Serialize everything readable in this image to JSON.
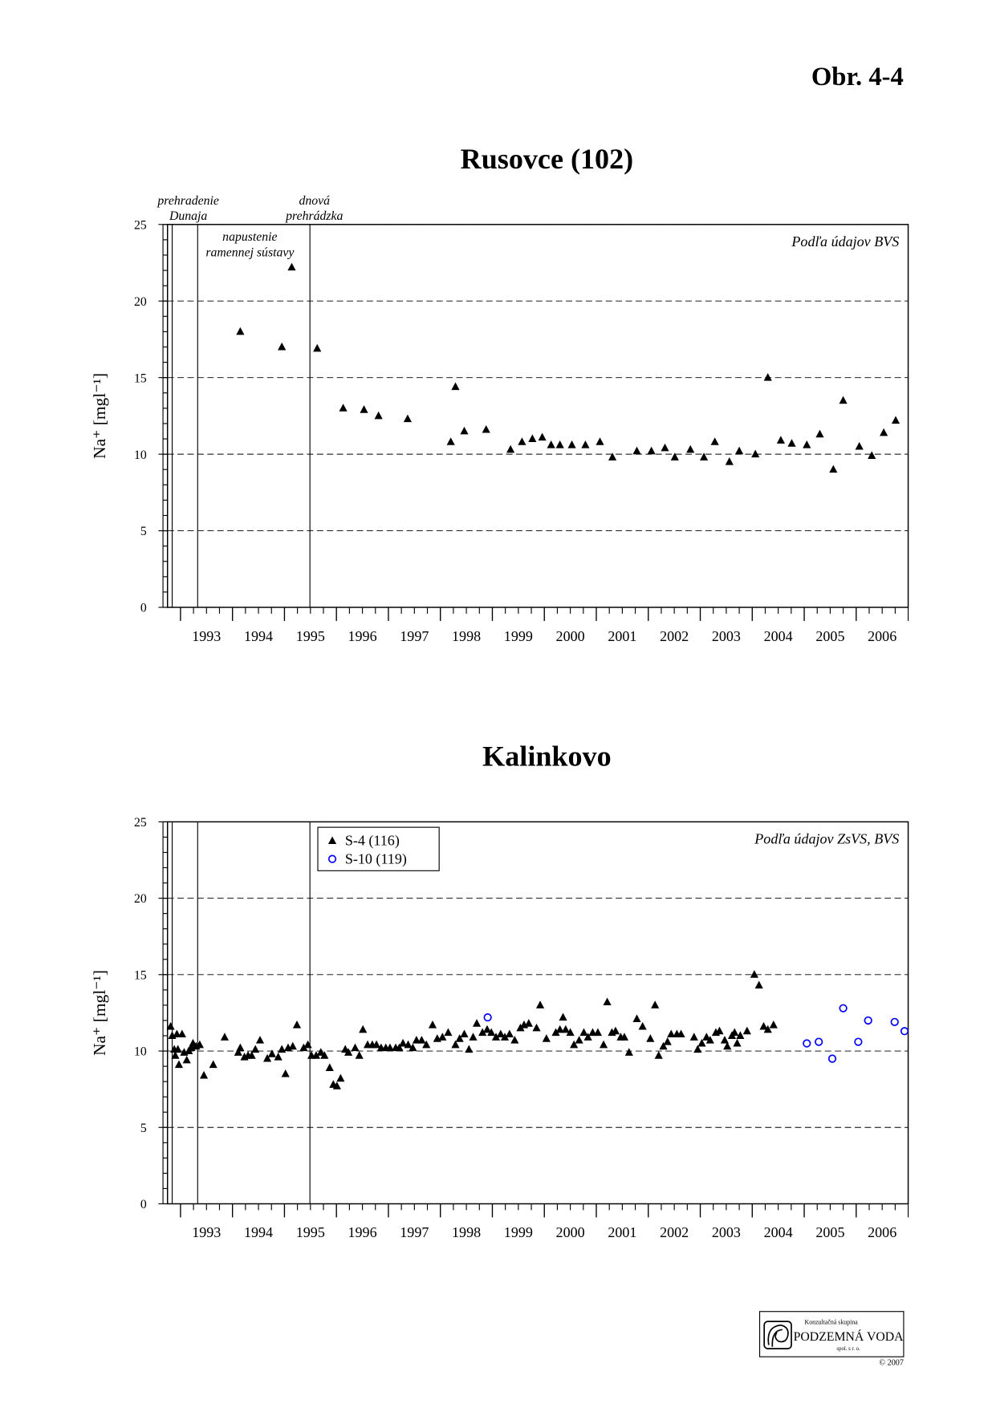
{
  "figure_label": "Obr. 4-4",
  "chart_data": [
    {
      "type": "scatter",
      "title": "Rusovce (102)",
      "y_label": "Na⁺ [mgl⁻¹]",
      "note": "Podľa údajov BVS",
      "xlim": [
        1992.75,
        2007
      ],
      "xticks": [
        1993,
        1994,
        1995,
        1996,
        1997,
        1998,
        1999,
        2000,
        2001,
        2002,
        2003,
        2004,
        2005,
        2006
      ],
      "ylim": [
        0,
        25
      ],
      "yticks": [
        0,
        5,
        10,
        15,
        20,
        25
      ],
      "grid": true,
      "events": [
        {
          "x": 1992.84,
          "label": [
            "prehradenie",
            "Dunaja"
          ]
        },
        {
          "x": 1993.33,
          "label": [
            "napustenie",
            "ramennej sústavy"
          ]
        },
        {
          "x": 1995.49,
          "label": [
            "dnová",
            "prehrádzka"
          ]
        }
      ],
      "series": [
        {
          "color": "#000000",
          "marker": "triangle",
          "x": [
            1994.15,
            1994.95,
            1995.14,
            1995.63,
            1996.13,
            1996.53,
            1996.81,
            1997.37,
            1998.2,
            1998.29,
            1998.46,
            1998.88,
            1999.35,
            1999.57,
            1999.77,
            1999.96,
            2000.13,
            2000.3,
            2000.53,
            2000.79,
            2001.07,
            2001.31,
            2001.78,
            2002.06,
            2002.32,
            2002.51,
            2002.81,
            2003.07,
            2003.28,
            2003.56,
            2003.75,
            2004.06,
            2004.3,
            2004.55,
            2004.76,
            2005.05,
            2005.3,
            2005.56,
            2005.75,
            2006.06,
            2006.3,
            2006.53,
            2006.76
          ],
          "values": [
            18.0,
            17.0,
            22.2,
            16.9,
            13.0,
            12.9,
            12.5,
            12.3,
            10.8,
            14.4,
            11.5,
            11.6,
            10.3,
            10.8,
            11.0,
            11.1,
            10.6,
            10.6,
            10.6,
            10.6,
            10.8,
            9.8,
            10.2,
            10.2,
            10.4,
            9.8,
            10.3,
            9.8,
            10.8,
            9.5,
            10.2,
            10.0,
            15.0,
            10.9,
            10.7,
            10.6,
            11.3,
            9.0,
            13.5,
            10.5,
            9.9,
            11.4,
            12.2
          ]
        }
      ]
    },
    {
      "type": "scatter",
      "title": "Kalinkovo",
      "y_label": "Na⁺ [mgl⁻¹]",
      "note": "Podľa údajov ZsVS, BVS",
      "xlim": [
        1992.75,
        2007
      ],
      "xticks": [
        1993,
        1994,
        1995,
        1996,
        1997,
        1998,
        1999,
        2000,
        2001,
        2002,
        2003,
        2004,
        2005,
        2006
      ],
      "ylim": [
        0,
        25
      ],
      "yticks": [
        0,
        5,
        10,
        15,
        20,
        25
      ],
      "grid": true,
      "legend": "top-left",
      "events": [
        {
          "x": 1992.84
        },
        {
          "x": 1993.33
        },
        {
          "x": 1995.49
        }
      ],
      "series": [
        {
          "name": "S-4 (116)",
          "color": "#000000",
          "marker": "triangle",
          "x": [
            1992.81,
            1992.84,
            1992.88,
            1992.9,
            1992.93,
            1992.95,
            1992.97,
            1993.03,
            1993.07,
            1993.12,
            1993.16,
            1993.21,
            1993.24,
            1993.3,
            1993.37,
            1993.45,
            1993.63,
            1993.85,
            1994.11,
            1994.15,
            1994.23,
            1994.3,
            1994.37,
            1994.44,
            1994.53,
            1994.67,
            1994.76,
            1994.88,
            1994.95,
            1995.02,
            1995.07,
            1995.16,
            1995.24,
            1995.37,
            1995.45,
            1995.52,
            1995.61,
            1995.7,
            1995.77,
            1995.87,
            1995.94,
            1996.01,
            1996.08,
            1996.17,
            1996.23,
            1996.36,
            1996.44,
            1996.51,
            1996.6,
            1996.69,
            1996.77,
            1996.86,
            1996.95,
            1997.03,
            1997.14,
            1997.21,
            1997.28,
            1997.38,
            1997.47,
            1997.54,
            1997.64,
            1997.73,
            1997.85,
            1997.94,
            1998.04,
            1998.15,
            1998.29,
            1998.37,
            1998.46,
            1998.55,
            1998.63,
            1998.7,
            1998.81,
            1998.9,
            1998.98,
            1999.07,
            1999.16,
            1999.24,
            1999.33,
            1999.43,
            1999.54,
            1999.61,
            1999.7,
            1999.85,
            1999.92,
            2000.04,
            2000.22,
            2000.3,
            2000.36,
            2000.41,
            2000.5,
            2000.57,
            2000.67,
            2000.76,
            2000.84,
            2000.93,
            2001.03,
            2001.14,
            2001.21,
            2001.3,
            2001.37,
            2001.47,
            2001.54,
            2001.63,
            2001.78,
            2001.89,
            2002.04,
            2002.13,
            2002.2,
            2002.29,
            2002.37,
            2002.44,
            2002.55,
            2002.63,
            2002.88,
            2002.95,
            2003.03,
            2003.12,
            2003.19,
            2003.3,
            2003.37,
            2003.47,
            2003.52,
            2003.61,
            2003.66,
            2003.71,
            2003.77,
            2003.9,
            2004.04,
            2004.13,
            2004.22,
            2004.3,
            2004.41
          ],
          "values": [
            11.6,
            11.0,
            10.1,
            9.7,
            11.1,
            10.1,
            9.1,
            11.1,
            9.9,
            9.4,
            10.0,
            10.2,
            10.5,
            10.3,
            10.4,
            8.4,
            9.1,
            10.9,
            9.9,
            10.2,
            9.6,
            9.7,
            9.7,
            10.1,
            10.7,
            9.5,
            9.8,
            9.6,
            10.1,
            8.5,
            10.2,
            10.3,
            11.7,
            10.2,
            10.4,
            9.7,
            9.7,
            9.9,
            9.7,
            8.9,
            7.8,
            7.7,
            8.2,
            10.1,
            9.9,
            10.2,
            9.7,
            11.4,
            10.4,
            10.4,
            10.4,
            10.2,
            10.2,
            10.2,
            10.2,
            10.2,
            10.5,
            10.4,
            10.2,
            10.7,
            10.7,
            10.4,
            11.7,
            10.8,
            10.9,
            11.2,
            10.4,
            10.8,
            11.1,
            10.1,
            10.9,
            11.8,
            11.2,
            11.4,
            11.2,
            10.9,
            11.1,
            10.9,
            11.1,
            10.7,
            11.5,
            11.7,
            11.8,
            11.5,
            13.0,
            10.8,
            11.2,
            11.4,
            12.2,
            11.4,
            11.2,
            10.4,
            10.7,
            11.2,
            10.9,
            11.2,
            11.2,
            10.4,
            13.2,
            11.2,
            11.3,
            10.9,
            10.9,
            9.9,
            12.1,
            11.6,
            10.8,
            13.0,
            9.7,
            10.3,
            10.6,
            11.1,
            11.1,
            11.1,
            10.9,
            10.1,
            10.5,
            10.9,
            10.7,
            11.2,
            11.3,
            10.7,
            10.3,
            11.0,
            11.2,
            10.5,
            11.0,
            11.3,
            15.0,
            14.3,
            11.6,
            11.4,
            11.7
          ]
        },
        {
          "name": "S-10 (119)",
          "color": "#0000ff",
          "marker": "circle",
          "x": [
            1998.91,
            2005.05,
            2005.28,
            2005.54,
            2005.75,
            2006.04,
            2006.23,
            2006.74,
            2006.93
          ],
          "values": [
            12.2,
            10.5,
            10.6,
            9.5,
            12.8,
            10.6,
            12.0,
            11.9,
            11.3
          ]
        }
      ]
    }
  ],
  "logo": {
    "line1": "Konzultačná skupina",
    "name": "PODZEMNÁ VODA",
    "line3": "spol. s r. o.",
    "copyright": "© 2007"
  }
}
